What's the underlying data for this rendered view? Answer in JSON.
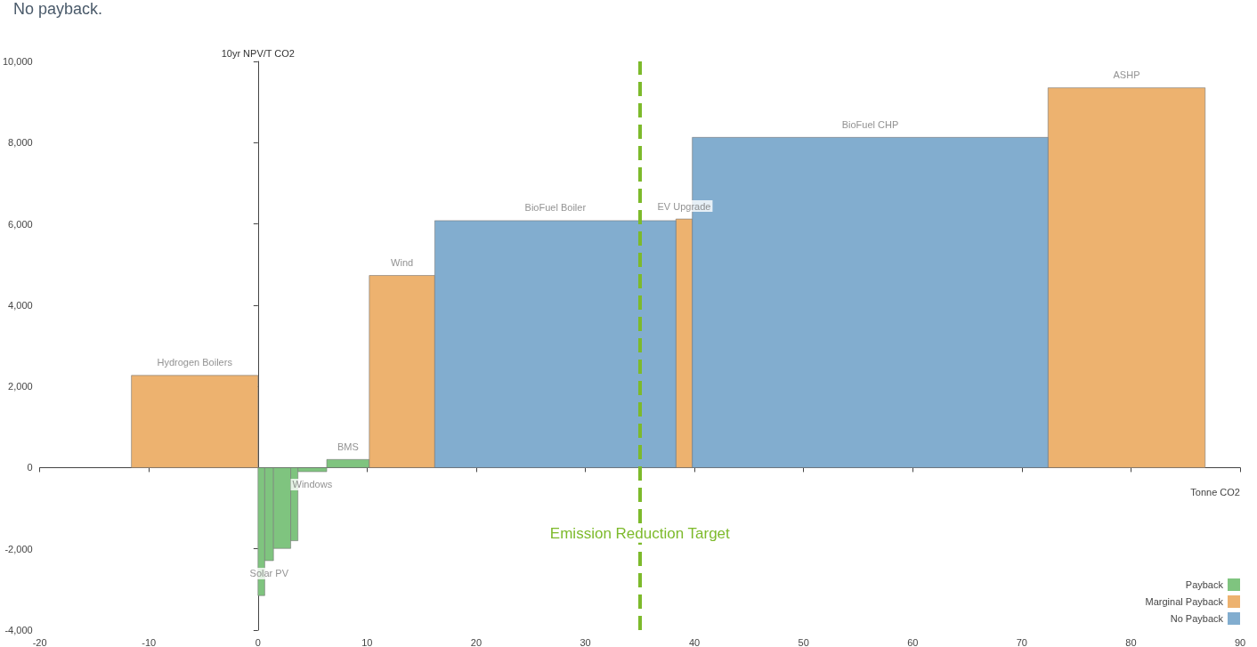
{
  "chart_data": {
    "type": "histogram",
    "xlabel": "Tonne CO2",
    "ylabel": "10yr NPV/T CO2",
    "bins": [
      -11.6,
      0,
      0.62,
      1.42,
      3.0,
      3.66,
      6.3,
      10.2,
      16.2,
      38.3,
      39.8,
      72.4,
      86.8
    ],
    "series": [
      {
        "name": "Payback",
        "color": "#7fc47f",
        "values": [
          null,
          -3150,
          -2290,
          -1990,
          -1800,
          -100,
          200,
          null,
          null,
          null,
          null,
          null
        ]
      },
      {
        "name": "Marginal Payback",
        "color": "#edb26f",
        "values": [
          2270,
          null,
          null,
          null,
          null,
          null,
          null,
          4730,
          null,
          6120,
          null,
          9350
        ]
      },
      {
        "name": "No Payback",
        "color": "#82adcf",
        "values": [
          null,
          null,
          null,
          null,
          null,
          null,
          null,
          null,
          6080,
          null,
          8130,
          null
        ]
      }
    ],
    "xlim": [
      -20,
      90
    ],
    "xticks": [
      -20,
      -10,
      0,
      10,
      20,
      30,
      40,
      50,
      60,
      70,
      80,
      90
    ],
    "ylim": [
      -4000,
      10000
    ],
    "yticks": [
      {
        "value": -4000,
        "label": "-4,000"
      },
      {
        "value": -2000,
        "label": "-2,000"
      },
      0,
      {
        "value": 2000,
        "label": "2,000"
      },
      {
        "value": 4000,
        "label": "4,000"
      },
      {
        "value": 6000,
        "label": "6,000"
      },
      {
        "value": 8000,
        "label": "8,000"
      },
      {
        "value": 10000,
        "label": "10,000"
      }
    ],
    "ref_lines": [
      {
        "axis": "x",
        "value": 35,
        "label": "Emission Reduction Target",
        "color": "#7dba2b",
        "line_style": "dashed"
      }
    ],
    "annotations": [
      "No payback.",
      {
        "text": "Hydrogen Boilers",
        "x": -5.8,
        "y": 2270
      },
      {
        "text": "Solar PV",
        "x": 1.02,
        "y": -2290
      },
      {
        "text": "Windows",
        "x": 4.98,
        "y": -100
      },
      {
        "text": "BMS",
        "x": 8.25,
        "y": 200
      },
      {
        "text": "Wind",
        "x": 13.2,
        "y": 4730
      },
      {
        "text": "BioFuel Boiler",
        "x": 27.25,
        "y": 6080
      },
      {
        "text": "EV Upgrade",
        "x": 39.05,
        "y": 6120
      },
      {
        "text": "BioFuel CHP",
        "x": 56.1,
        "y": 8130
      },
      {
        "text": "ASHP",
        "x": 79.6,
        "y": 9350
      }
    ],
    "legend": "bottom right"
  }
}
